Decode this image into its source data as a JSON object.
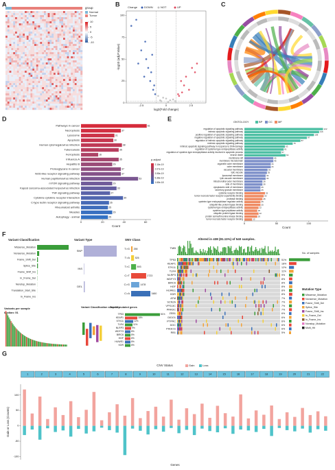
{
  "panel_labels": [
    "A",
    "B",
    "C",
    "D",
    "E",
    "F",
    "G"
  ],
  "chart_data": [
    {
      "type": "heatmap",
      "legend_title": "group",
      "groups": [
        "Normal",
        "Tumor"
      ],
      "group_colors": [
        "#7fb8d8",
        "#e8807a"
      ],
      "clim": [
        -10,
        10
      ],
      "colorbar_ticks": [
        10,
        5,
        0,
        -5,
        -10
      ]
    },
    {
      "type": "scatter",
      "xlabel": "log2(Fold change)",
      "ylabel": "-log10 (adj.P.Value)",
      "legend_title": "Change",
      "xlim": [
        -4,
        4
      ],
      "xticks": [
        -2.5,
        0,
        2.5
      ],
      "ylim": [
        0,
        105
      ],
      "yticks": [
        0,
        25,
        50,
        75,
        100
      ],
      "series": [
        {
          "name": "DOWN",
          "color": "#3a5fb0",
          "x": [
            -1.2,
            -1.5,
            -2,
            -2.5,
            -3,
            -1.8,
            -1.1,
            -2.2,
            -3.5,
            -1.4,
            -2.8,
            -1.6,
            -1.3,
            -2.1
          ],
          "y": [
            20,
            35,
            50,
            60,
            95,
            40,
            10,
            30,
            88,
            55,
            45,
            25,
            15,
            70
          ]
        },
        {
          "name": "NOT",
          "color": "#bdbdbd",
          "x": [
            -0.5,
            0,
            0.4,
            -0.8,
            0.7,
            0.2,
            -0.3,
            0.9,
            -0.6
          ],
          "y": [
            2,
            5,
            3,
            8,
            4,
            1,
            6,
            2,
            3
          ]
        },
        {
          "name": "UP",
          "color": "#e0455a",
          "x": [
            1.2,
            1.5,
            2,
            2.6,
            3.1,
            1.8,
            2.3,
            1.3,
            2.9,
            1.6
          ],
          "y": [
            10,
            25,
            30,
            40,
            45,
            20,
            15,
            8,
            35,
            12
          ]
        }
      ]
    },
    {
      "type": "circos"
    },
    {
      "type": "hbar",
      "xlabel": "Count",
      "legend_title": "p.adjust",
      "colorbar_labels": [
        "2.16e-19",
        "2.07e-19",
        "3.98e-19",
        "5.38e-19",
        "1.68e-18"
      ],
      "xlim": [
        0,
        65
      ],
      "xticks": [
        0,
        20,
        40,
        60
      ],
      "categories": [
        "Pathways in cancer",
        "Necroptosis",
        "Lysosome",
        "Apoptosis",
        "Human cytomegalovirus infection",
        "Tuberculosis",
        "Ferroptosis",
        "Influenza A",
        "Hepatitis B",
        "Proteoglycans in cancer",
        "NOD-like receptor signaling pathway",
        "Human papillomavirus infection",
        "mTOR signaling pathway",
        "Kaposi sarcoma-associated herpesvirus infection",
        "TNF signaling pathway",
        "Cytokine-cytokine receptor interaction",
        "C-type lectin receptor signaling pathway",
        "Rheumatoid arthritis",
        "Measles",
        "Autophagy - animal"
      ],
      "values": [
        61,
        37,
        31,
        30,
        38,
        35,
        16,
        35,
        29,
        37,
        37,
        53,
        29,
        33,
        27,
        39,
        26,
        25,
        29,
        25
      ],
      "colors": [
        "#d62d3c",
        "#d22f42",
        "#cc3348",
        "#c6364f",
        "#bf3a56",
        "#b73e5e",
        "#ad4366",
        "#a4476e",
        "#9a4c77",
        "#904f80",
        "#855389",
        "#7b5791",
        "#715b99",
        "#665fa1",
        "#5b63a9",
        "#5167b0",
        "#476ab6",
        "#3f6dbb",
        "#3870c0",
        "#3272c4"
      ]
    },
    {
      "type": "hbar_grouped",
      "xlabel": "Count",
      "legend_title": "ONTOLOGY",
      "ontologies": [
        "BP",
        "CC",
        "MF"
      ],
      "ontology_colors": [
        "#4cbfa3",
        "#7c8fc9",
        "#ef8a62"
      ],
      "xlim": [
        0,
        130
      ],
      "xticks": [
        0,
        50,
        100
      ],
      "categories": [
        "regulation of apoptotic signaling pathway",
        "intrinsic apoptotic signaling pathway",
        "positive regulation of apoptotic signaling pathway",
        "negative regulation of apoptotic signaling pathway",
        "regulation of intrinsic apoptotic signaling pathway",
        "extrinsic apoptotic signaling pathway",
        "intrinsic apoptotic signaling pathway in response to DNA damage",
        "regulation of cysteine-type endopeptidase activity",
        "regulation of cysteine-type endopeptidase activity involved in apoptotic process",
        "neuron death",
        "membrane raft",
        "membrane microdomain",
        "organelle outer membrane",
        "outer membrane",
        "vacuolar membrane",
        "lytic vacuole",
        "lysosomal membrane",
        "lytic vacuole membrane",
        "mitochondrial outer membrane",
        "side of membrane",
        "cytoplasmic side of membrane",
        "secretory granule membrane",
        "cytokine receptor binding",
        "tumor necrosis factor receptor superfamily binding",
        "protease binding",
        "cysteine-type endopeptidase regulator activity",
        "ubiquitin-like protein ligase binding",
        "cysteine-type endopeptidase activity",
        "cysteine-type peptidase activity",
        "ubiquitin protein ligase binding",
        "protein serine/threonine kinase binding",
        "tumor necrosis factor receptor binding"
      ],
      "values": [
        122,
        116,
        108,
        97,
        87,
        75,
        63,
        61,
        57,
        64,
        45,
        45,
        41,
        41,
        36,
        35,
        33,
        33,
        28,
        28,
        25,
        25,
        32,
        30,
        28,
        25,
        25,
        22,
        20,
        22,
        20,
        12
      ],
      "groups": [
        0,
        0,
        0,
        0,
        0,
        0,
        0,
        0,
        0,
        0,
        1,
        1,
        1,
        1,
        1,
        1,
        1,
        1,
        1,
        1,
        1,
        1,
        2,
        2,
        2,
        2,
        2,
        2,
        2,
        2,
        2,
        2
      ]
    },
    {
      "type": "maf_summary",
      "oncoplot_title": "Altered in 438 (81.11%) of 540 samples.",
      "vc_title": "Variant Classification",
      "vt_title": "Variant Type",
      "snv_title": "SNV Class",
      "vps_title": "Variants per sample",
      "vps_median": "Median: 51",
      "summary_title": "Variant Classification summary",
      "top_title": "Top 10 mutated genes",
      "tmb_label": "TMB",
      "samples_label": "No. of samples",
      "mt_title": "Mutation Type",
      "vc_categories": [
        "Missense_Mutation",
        "Nonsense_Mutation",
        "Frame_Shift_Del",
        "Splice_Site",
        "Frame_Shift_Ins",
        "In_Frame_Del",
        "Nonstop_Mutation",
        "Translation_Start_Site",
        "In_Frame_Ins"
      ],
      "vc_values": [
        9000,
        600,
        250,
        250,
        80,
        50,
        20,
        15,
        5
      ],
      "vc_color": "#3a9d3a",
      "vt_categories": [
        "SNP",
        "INS",
        "DEL"
      ],
      "vt_values": [
        9300,
        120,
        300
      ],
      "vt_color": "#b0b0d8",
      "snv_categories": [
        "T>G",
        "T>A",
        "T>C",
        "C>T",
        "C>G",
        "C>A"
      ],
      "snv_values": [
        258,
        526,
        893,
        2723,
        1478,
        3480
      ],
      "snv_colors": [
        "#f2a33a",
        "#f4cf3a",
        "#4db04a",
        "#e84a3a",
        "#6aa4d8",
        "#3a70b8"
      ],
      "genes": [
        "TP53",
        "KEAP1",
        "STK11",
        "TLR4",
        "NLRP3",
        "WDFY3",
        "BIRC6",
        "HGF",
        "HUWE1",
        "KDR",
        "ATM",
        "SCN2A",
        "VPS13C",
        "PRKDC",
        "ZEB1",
        "DIDO1",
        "PTPRC",
        "DOC",
        "PIK3CG",
        "RB1"
      ],
      "gene_values": [
        51,
        18,
        12,
        11,
        9,
        8,
        8,
        8,
        8,
        8,
        7,
        7,
        7,
        7,
        6,
        6,
        6,
        6,
        6,
        5
      ],
      "gene_value_labels": [
        "51%",
        "18%",
        "12%",
        "11%",
        "9%",
        "8%",
        "8%",
        "8%",
        "8%",
        "8%",
        "7%",
        "7%",
        "7%",
        "7%",
        "6%",
        "6%",
        "6%",
        "6%",
        "6%",
        "5%"
      ],
      "mutation_types": [
        "Missense_Mutation",
        "Nonsense_Mutation",
        "Frame_Shift_Del",
        "Splice_Site",
        "Frame_Shift_Ins",
        "In_Frame_Del",
        "In_Frame_Ins",
        "Nonstop_Mutation",
        "Multi_Hit"
      ],
      "mutation_colors": [
        "#3a9d3a",
        "#e8473a",
        "#3a70b8",
        "#f2a33a",
        "#a04aa0",
        "#f4cf3a",
        "#8b5a2b",
        "#e377c2",
        "#222222"
      ]
    },
    {
      "type": "cnv_bar",
      "title": "CNV Status",
      "ylabel": "Gain or Loss (Counts)",
      "xlabel": "Genes",
      "ylim": [
        -110,
        135
      ],
      "yticks": [
        -100,
        -50,
        0,
        50,
        100
      ],
      "series": [
        {
          "name": "Gain",
          "color": "#f2a49e",
          "values": [
            118,
            40,
            95,
            22,
            60,
            35,
            80,
            28,
            52,
            110,
            18,
            44,
            70,
            33,
            90,
            25,
            48,
            62,
            30,
            85,
            20,
            57,
            38,
            72,
            26,
            65,
            41,
            30,
            102,
            24,
            50,
            36,
            66,
            22,
            44,
            29,
            58,
            35,
            47,
            31
          ]
        },
        {
          "name": "Loss",
          "color": "#4fc3c9",
          "values": [
            -30,
            -12,
            -45,
            -8,
            -20,
            -15,
            -35,
            -10,
            -25,
            -18,
            -6,
            -14,
            -22,
            -95,
            -9,
            -16,
            -28,
            -11,
            -19,
            -7,
            -24,
            -13,
            -30,
            -9,
            -17,
            -21,
            -8,
            -26,
            -12,
            -15,
            -20,
            -10,
            -33,
            -7,
            -14,
            -18,
            -9,
            -22,
            -11,
            -16
          ]
        }
      ],
      "chromosomes": [
        "1",
        "2",
        "3",
        "4",
        "5",
        "6",
        "7",
        "8",
        "9",
        "10",
        "11",
        "12",
        "13",
        "14",
        "15",
        "16",
        "17",
        "18",
        "19",
        "20",
        "21",
        "22"
      ]
    }
  ]
}
